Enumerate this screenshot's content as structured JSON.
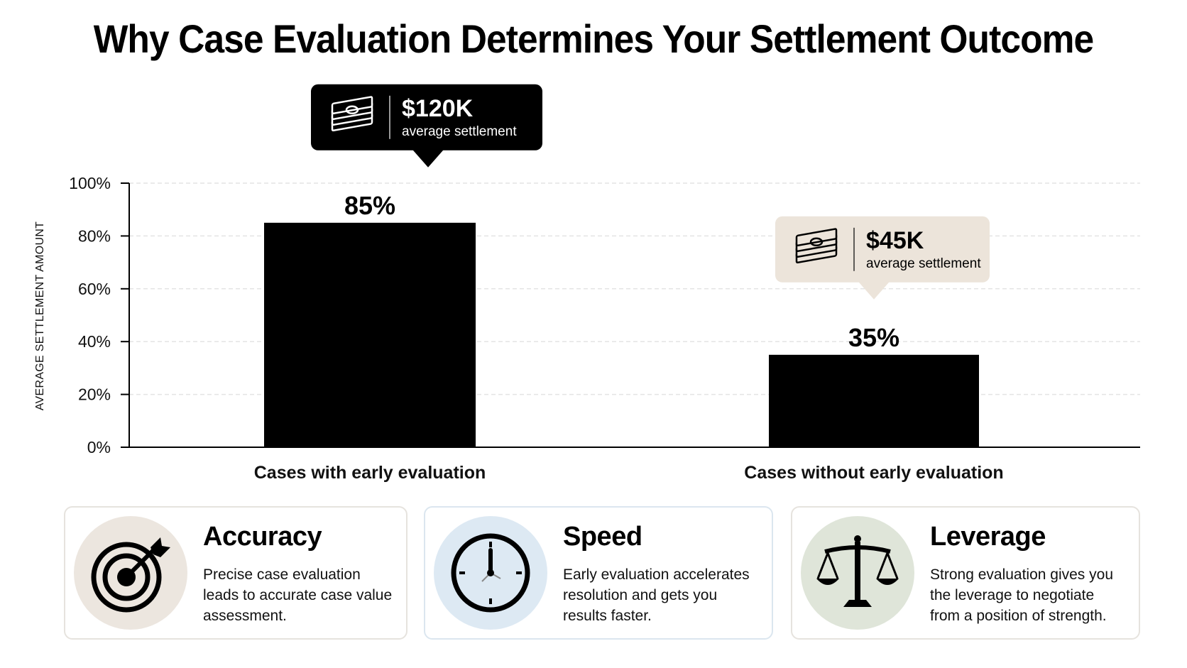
{
  "title": "Why Case Evaluation Determines Your Settlement Outcome",
  "colors": {
    "bar": "#000000",
    "grid": "#e4e4e4",
    "callout_dark_bg": "#000000",
    "callout_light_bg": "#ece4da",
    "accuracy_circle": "#ece6df",
    "speed_circle": "#dde9f3",
    "leverage_circle": "#dfe5d9"
  },
  "chart_data": {
    "type": "bar",
    "ylabel": "AVERAGE SETTLEMENT AMOUNT",
    "xlabel": "",
    "ylim": [
      0,
      100
    ],
    "yticks": [
      0,
      20,
      40,
      60,
      80,
      100
    ],
    "ytick_labels": [
      "0%",
      "20%",
      "40%",
      "60%",
      "80%",
      "100%"
    ],
    "grid": true,
    "categories": [
      "Cases with early evaluation",
      "Cases without early evaluation"
    ],
    "values": [
      85,
      35
    ],
    "value_labels": [
      "85%",
      "35%"
    ],
    "annotations": [
      {
        "value": "$120K",
        "text": "average settlement",
        "icon": "money-stack-icon",
        "style": "dark"
      },
      {
        "value": "$45K",
        "text": "average settlement",
        "icon": "money-stack-icon",
        "style": "light"
      }
    ]
  },
  "cards": [
    {
      "title": "Accuracy",
      "text": "Precise case evaluation leads to accurate case value assessment.",
      "icon": "target-icon"
    },
    {
      "title": "Speed",
      "text": "Early evaluation accelerates resolution and gets you results faster.",
      "icon": "clock-icon"
    },
    {
      "title": "Leverage",
      "text": "Strong evaluation gives you the leverage to negotiate from a position of strength.",
      "icon": "scales-icon"
    }
  ]
}
